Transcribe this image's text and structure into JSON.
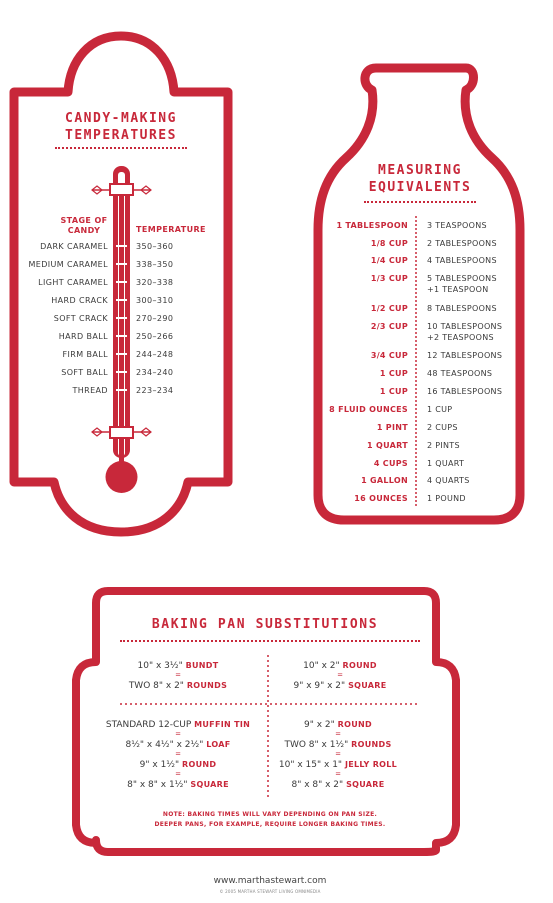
{
  "colors": {
    "accent": "#c8283a",
    "text": "#3a3a3a"
  },
  "candy": {
    "title_line1": "CANDY-MAKING",
    "title_line2": "TEMPERATURES",
    "head_stage_1": "STAGE OF",
    "head_stage_2": "CANDY",
    "head_temp": "TEMPERATURE",
    "rows": [
      {
        "stage": "DARK CARAMEL",
        "temp": "350–360"
      },
      {
        "stage": "MEDIUM CARAMEL",
        "temp": "338–350"
      },
      {
        "stage": "LIGHT CARAMEL",
        "temp": "320–338"
      },
      {
        "stage": "HARD CRACK",
        "temp": "300–310"
      },
      {
        "stage": "SOFT CRACK",
        "temp": "270–290"
      },
      {
        "stage": "HARD BALL",
        "temp": "250–266"
      },
      {
        "stage": "FIRM BALL",
        "temp": "244–248"
      },
      {
        "stage": "SOFT BALL",
        "temp": "234–240"
      },
      {
        "stage": "THREAD",
        "temp": "223–234"
      }
    ]
  },
  "measuring": {
    "title_line1": "MEASURING",
    "title_line2": "EQUIVALENTS",
    "rows": [
      {
        "lhs": "1 TABLESPOON",
        "rhs": "3 TEASPOONS",
        "rhs2": ""
      },
      {
        "lhs": "1/8 CUP",
        "rhs": "2 TABLESPOONS",
        "rhs2": ""
      },
      {
        "lhs": "1/4 CUP",
        "rhs": "4 TABLESPOONS",
        "rhs2": ""
      },
      {
        "lhs": "1/3 CUP",
        "rhs": "5 TABLESPOONS",
        "rhs2": "+1 TEASPOON"
      },
      {
        "lhs": "1/2 CUP",
        "rhs": "8 TABLESPOONS",
        "rhs2": ""
      },
      {
        "lhs": "2/3 CUP",
        "rhs": "10 TABLESPOONS",
        "rhs2": "+2 TEASPOONS"
      },
      {
        "lhs": "3/4 CUP",
        "rhs": "12 TABLESPOONS",
        "rhs2": ""
      },
      {
        "lhs": "1 CUP",
        "rhs": "48 TEASPOONS",
        "rhs2": ""
      },
      {
        "lhs": "1 CUP",
        "rhs": "16 TABLESPOONS",
        "rhs2": ""
      },
      {
        "lhs": "8 FLUID OUNCES",
        "rhs": "1 CUP",
        "rhs2": ""
      },
      {
        "lhs": "1 PINT",
        "rhs": "2 CUPS",
        "rhs2": ""
      },
      {
        "lhs": "1 QUART",
        "rhs": "2 PINTS",
        "rhs2": ""
      },
      {
        "lhs": "4 CUPS",
        "rhs": "1 QUART",
        "rhs2": ""
      },
      {
        "lhs": "1 GALLON",
        "rhs": "4 QUARTS",
        "rhs2": ""
      },
      {
        "lhs": "16 OUNCES",
        "rhs": "1 POUND",
        "rhs2": ""
      }
    ]
  },
  "baking": {
    "title": "BAKING PAN SUBSTITUTIONS",
    "left_top": {
      "a_dim": "10\" x 3½\"",
      "a_name": "BUNDT",
      "b_dim": "TWO 8\" x 2\"",
      "b_name": "ROUNDS"
    },
    "right_top": {
      "a_dim": "10\" x 2\"",
      "a_name": "ROUND",
      "b_dim": "9\" x 9\" x 2\"",
      "b_name": "SQUARE"
    },
    "left_bottom": {
      "a_dim": "STANDARD 12-CUP",
      "a_name": "MUFFIN TIN",
      "b_dim": "8½\" x 4½\" x 2½\"",
      "b_name": "LOAF",
      "c_dim": "9\" x 1½\"",
      "c_name": "ROUND",
      "d_dim": "8\" x 8\" x 1½\"",
      "d_name": "SQUARE"
    },
    "right_bottom": {
      "a_dim": "9\" x 2\"",
      "a_name": "ROUND",
      "b_dim": "TWO 8\" x 1½\"",
      "b_name": "ROUNDS",
      "c_dim": "10\" x 15\" x 1\"",
      "c_name": "JELLY ROLL",
      "d_dim": "8\" x 8\" x 2\"",
      "d_name": "SQUARE"
    },
    "equals": "=",
    "note_line1": "NOTE: BAKING TIMES WILL VARY DEPENDING ON PAN SIZE.",
    "note_line2": "DEEPER PANS, FOR EXAMPLE, REQUIRE LONGER BAKING TIMES."
  },
  "footer": {
    "url": "www.marthastewart.com",
    "copyright": "© 2005 MARTHA STEWART LIVING OMNIMEDIA"
  }
}
